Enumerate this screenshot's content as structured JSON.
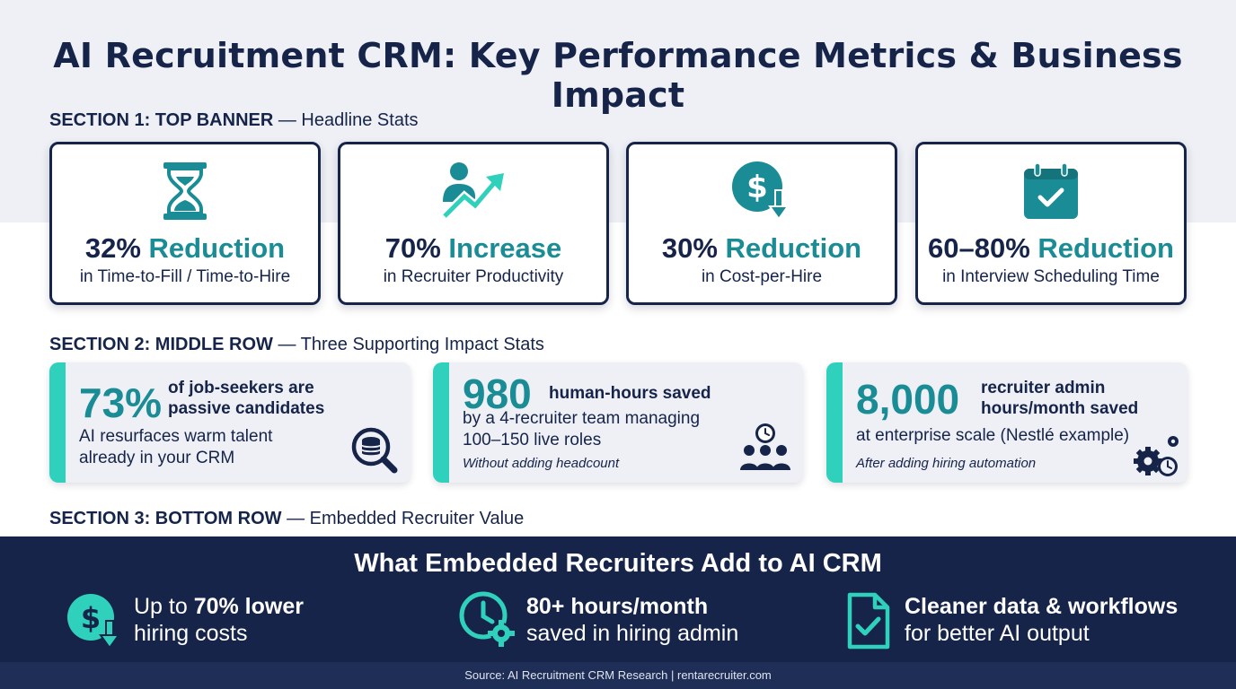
{
  "title": "AI Recruitment CRM: Key Performance Metrics & Business Impact",
  "colors": {
    "navy": "#16244a",
    "teal": "#1a8c96",
    "accent": "#2fd1bd",
    "panel": "#eef0f5"
  },
  "sections": [
    {
      "label": "SECTION 1: TOP BANNER",
      "desc": "— Headline Stats"
    },
    {
      "label": "SECTION 2: MIDDLE ROW",
      "desc": "— Three Supporting Impact Stats"
    },
    {
      "label": "SECTION 3: BOTTOM ROW",
      "desc": "— Embedded Recruiter Value"
    }
  ],
  "top_stats": [
    {
      "icon": "hourglass-icon",
      "number": "32%",
      "word": "Reduction",
      "sub": "in Time-to-Fill / Time-to-Hire"
    },
    {
      "icon": "productivity-arrow-icon",
      "number": "70%",
      "word": "Increase",
      "sub": "in Recruiter Productivity"
    },
    {
      "icon": "dollar-down-icon",
      "number": "30%",
      "word": "Reduction",
      "sub": "in Cost-per-Hire"
    },
    {
      "icon": "calendar-check-icon",
      "number": "60–80%",
      "word": "Reduction",
      "sub": "in Interview Scheduling Time"
    }
  ],
  "middle_stats": [
    {
      "big": "73%",
      "head1": "of job-seekers are",
      "head2": "passive candidates",
      "text1": "AI resurfaces warm talent",
      "text2": "already in your CRM",
      "note": "",
      "icon": "database-search-icon"
    },
    {
      "big": "980",
      "head1": "human-hours saved",
      "head2": "",
      "text1": "by a 4-recruiter team managing",
      "text2": "100–150 live roles",
      "note": "Without adding headcount",
      "icon": "team-clock-icon"
    },
    {
      "big": "8,000",
      "head1": "recruiter admin",
      "head2": "hours/month saved",
      "text1": "at enterprise scale (Nestlé example)",
      "text2": "",
      "note": "After adding hiring automation",
      "icon": "gears-clock-icon"
    }
  ],
  "bottom": {
    "title": "What Embedded Recruiters Add to AI CRM",
    "items": [
      {
        "icon": "dollar-down-icon",
        "pre": "Up to ",
        "bold": "70% lower",
        "line2": "hiring costs"
      },
      {
        "icon": "clock-gear-icon",
        "pre": "",
        "bold": "80+ hours/month",
        "line2": "saved in hiring admin"
      },
      {
        "icon": "document-check-icon",
        "pre": "",
        "bold": "Cleaner data & workflows",
        "line2": "for better AI output"
      }
    ]
  },
  "footer": "Source: AI Recruitment CRM Research | rentarecruiter.com"
}
